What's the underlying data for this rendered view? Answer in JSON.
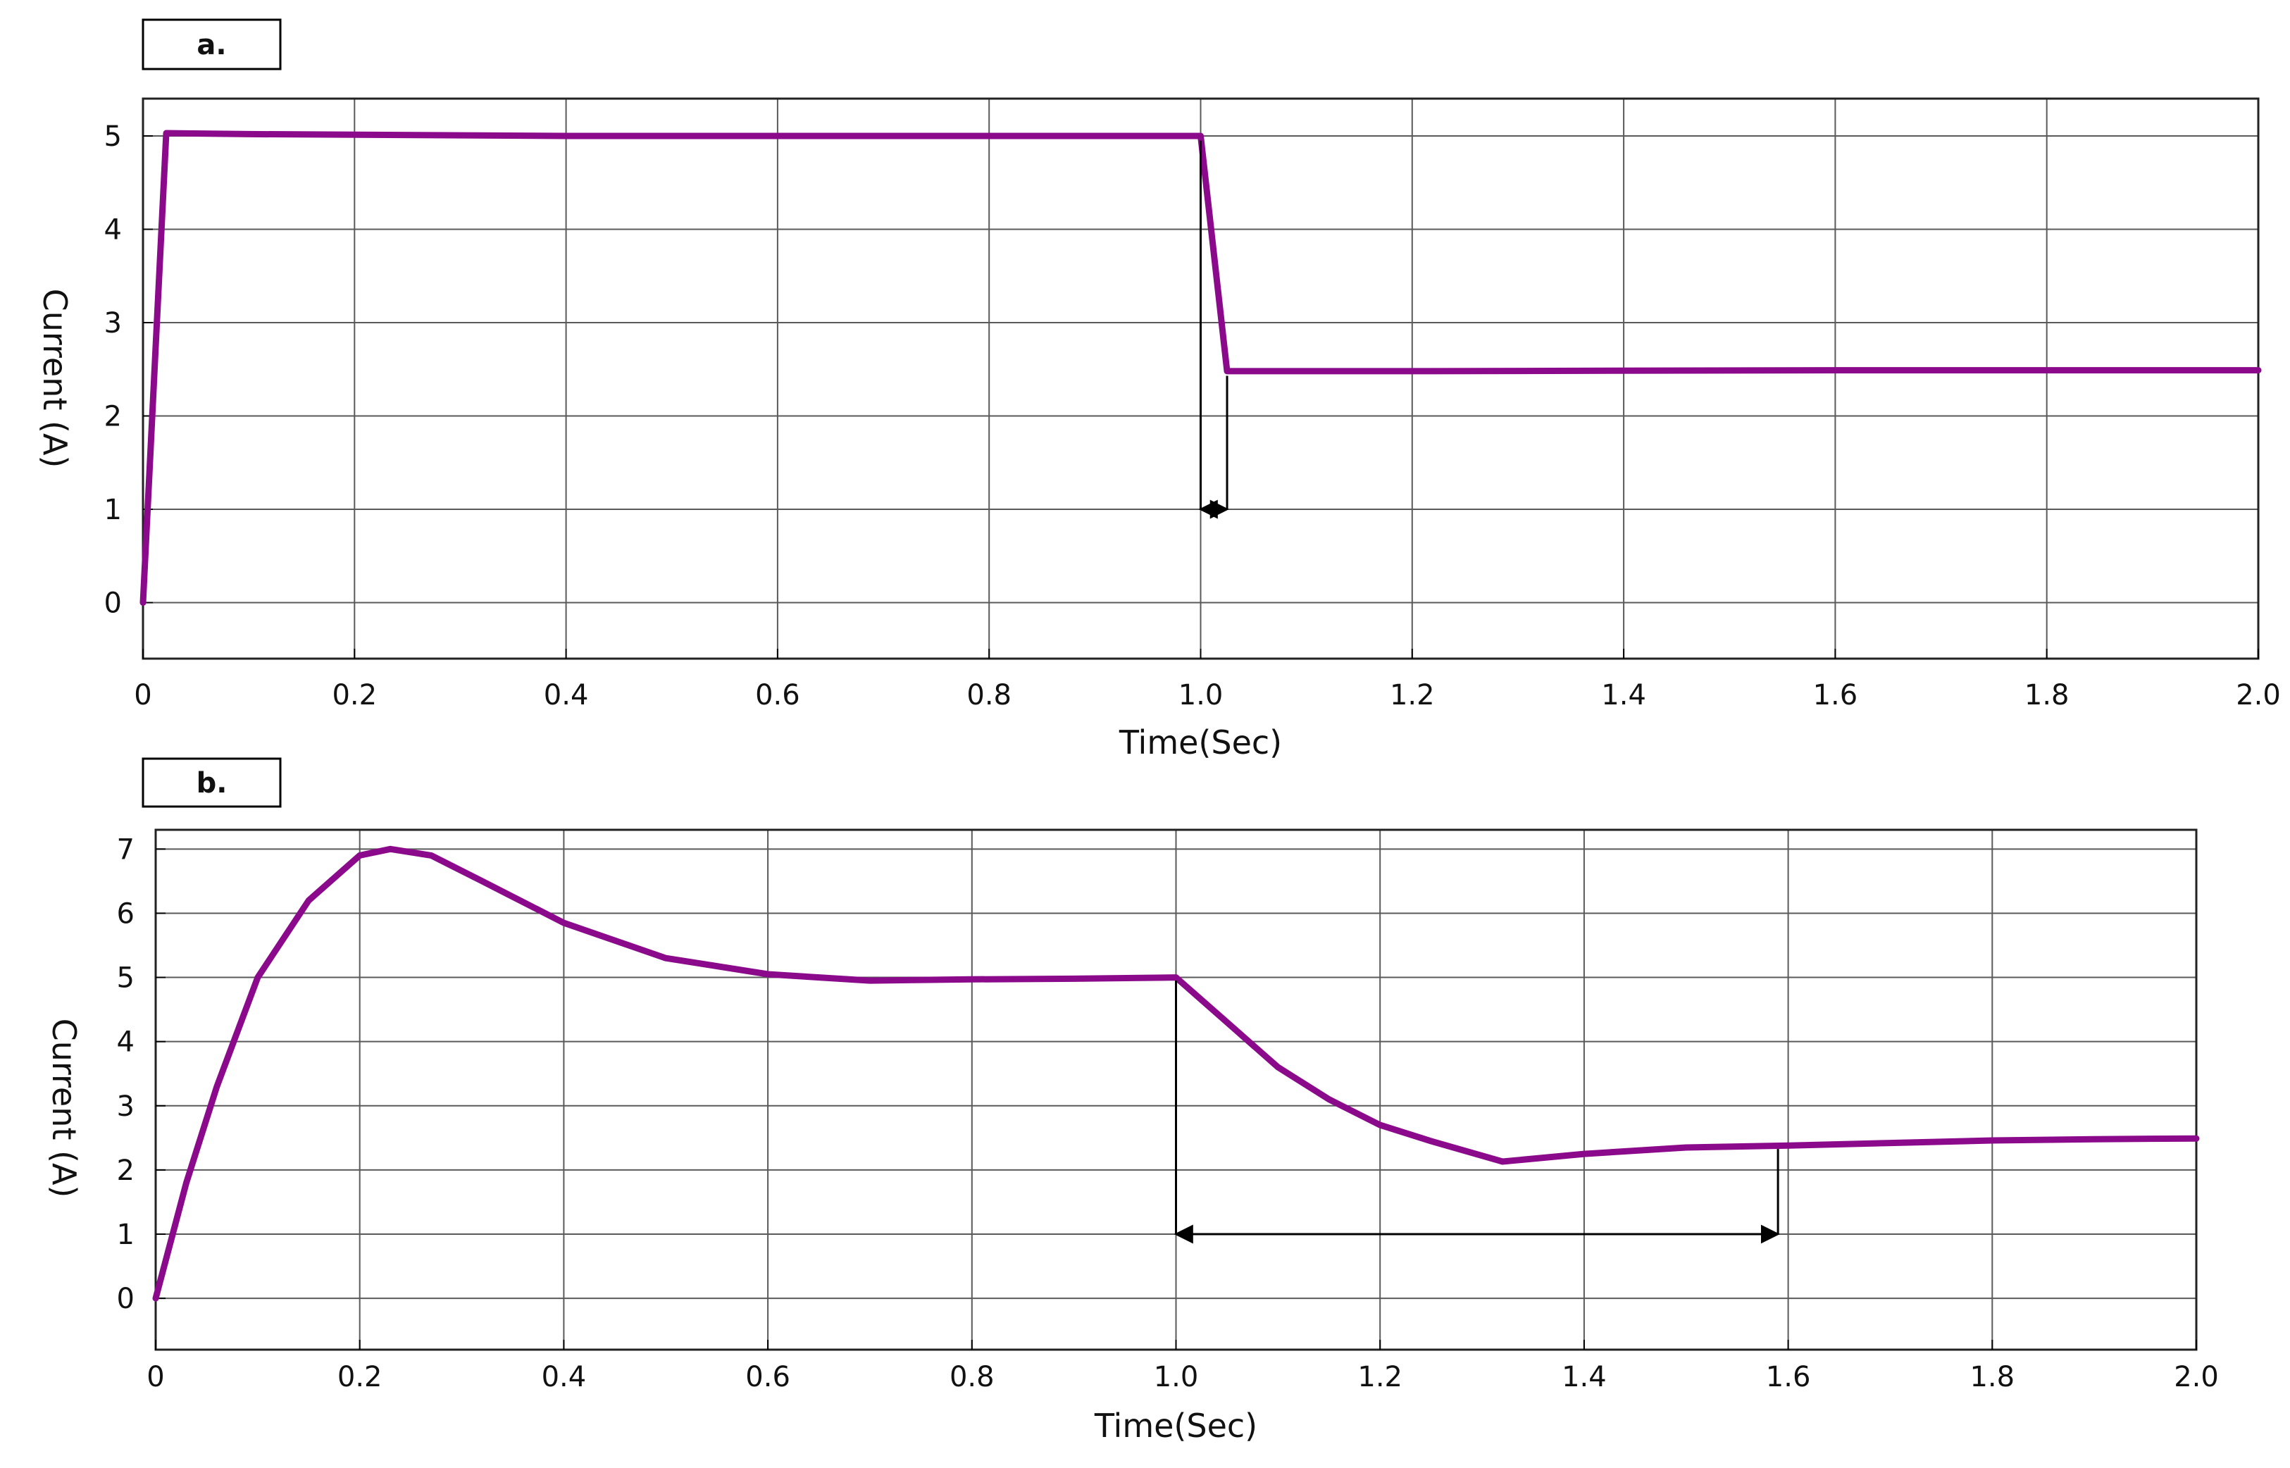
{
  "chart_data": [
    {
      "type": "line",
      "panel_label": "a.",
      "xlabel": "Time(Sec)",
      "ylabel": "Current (A)",
      "xlim": [
        0,
        2.0
      ],
      "ylim": [
        -0.6,
        5.4
      ],
      "x_ticks": [
        0,
        0.2,
        0.4,
        0.6,
        0.8,
        1.0,
        1.2,
        1.4,
        1.6,
        1.8,
        2.0
      ],
      "x_tick_labels": [
        "0",
        "0.2",
        "0.4",
        "0.6",
        "0.8",
        "1.0",
        "1.2",
        "1.4",
        "1.6",
        "1.8",
        "2.0"
      ],
      "y_ticks": [
        0,
        1,
        2,
        3,
        4,
        5
      ],
      "y_tick_labels": [
        "0",
        "1",
        "2",
        "3",
        "4",
        "5"
      ],
      "grid": true,
      "line_color": "#8B0A8B",
      "series": [
        {
          "x": [
            0,
            0.022,
            0.1,
            0.4,
            0.8,
            1.0,
            1.025,
            1.2,
            1.6,
            2.0
          ],
          "values": [
            0,
            5.03,
            5.02,
            5.0,
            5.0,
            5.0,
            2.48,
            2.48,
            2.49,
            2.49
          ]
        }
      ],
      "annotation": {
        "type": "double-arrow",
        "x_start": 1.0,
        "x_end": 1.025,
        "y": 1.0
      }
    },
    {
      "type": "line",
      "panel_label": "b.",
      "xlabel": "Time(Sec)",
      "ylabel": "Current (A)",
      "xlim": [
        0,
        2.0
      ],
      "ylim": [
        -0.8,
        7.3
      ],
      "x_ticks": [
        0,
        0.2,
        0.4,
        0.6,
        0.8,
        1.0,
        1.2,
        1.4,
        1.6,
        1.8,
        2.0
      ],
      "x_tick_labels": [
        "0",
        "0.2",
        "0.4",
        "0.6",
        "0.8",
        "1.0",
        "1.2",
        "1.4",
        "1.6",
        "1.8",
        "2.0"
      ],
      "y_ticks": [
        0,
        1,
        2,
        3,
        4,
        5,
        6,
        7
      ],
      "y_tick_labels": [
        "0",
        "1",
        "2",
        "3",
        "4",
        "5",
        "6",
        "7"
      ],
      "grid": true,
      "line_color": "#8B0A8B",
      "series": [
        {
          "x": [
            0,
            0.03,
            0.06,
            0.1,
            0.15,
            0.2,
            0.23,
            0.27,
            0.32,
            0.4,
            0.5,
            0.6,
            0.7,
            0.8,
            0.9,
            1.0,
            1.05,
            1.1,
            1.15,
            1.2,
            1.25,
            1.32,
            1.4,
            1.5,
            1.6,
            1.7,
            1.8,
            1.9,
            2.0
          ],
          "values": [
            0,
            1.8,
            3.3,
            5.0,
            6.2,
            6.9,
            7.0,
            6.9,
            6.5,
            5.85,
            5.3,
            5.05,
            4.95,
            4.97,
            4.98,
            5.0,
            4.3,
            3.6,
            3.1,
            2.7,
            2.45,
            2.13,
            2.25,
            2.35,
            2.38,
            2.42,
            2.46,
            2.48,
            2.49
          ]
        }
      ],
      "annotation": {
        "type": "double-arrow",
        "x_start": 1.0,
        "x_end": 1.59,
        "y": 1.0
      }
    }
  ]
}
